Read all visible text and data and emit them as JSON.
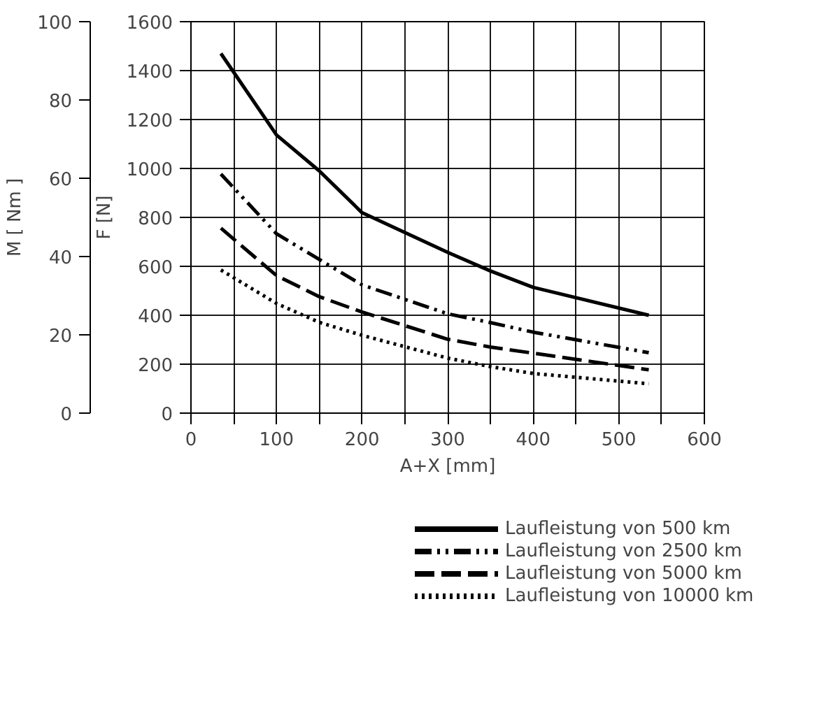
{
  "chart_data": {
    "type": "line",
    "xlabel": "A+X [mm]",
    "ylabel": "F [N]",
    "y2label": "M [ Nm ]",
    "xlim": [
      0,
      600
    ],
    "ylim": [
      0,
      1600
    ],
    "y2lim": [
      0,
      100
    ],
    "xticks": [
      0,
      {
        "value": 50,
        "label": null
      },
      100,
      {
        "value": 150,
        "label": null
      },
      200,
      {
        "value": 250,
        "label": null
      },
      300,
      {
        "value": 350,
        "label": null
      },
      400,
      {
        "value": 450,
        "label": null
      },
      500,
      {
        "value": 550,
        "label": null
      },
      600
    ],
    "yticks": [
      0,
      200,
      400,
      600,
      800,
      1000,
      1200,
      1400,
      1600
    ],
    "y2ticks": [
      0,
      20,
      40,
      60,
      80,
      100
    ],
    "grid": true,
    "legend": "bottom",
    "marker": "none",
    "x": [
      35,
      100,
      150,
      200,
      300,
      350,
      400,
      535
    ],
    "series": [
      {
        "name": "Laufleistung von 500 km",
        "color": "#000000",
        "line_style": "solid",
        "values": [
          1470,
          1137,
          990,
          819,
          657,
          581,
          514,
          400
        ]
      },
      {
        "name": "Laufleistung von 2500 km",
        "color": "#000000",
        "line_style": "dashdotdot",
        "values": [
          977,
          733,
          628,
          524,
          406,
          370,
          331,
          247
        ]
      },
      {
        "name": "Laufleistung von 5000 km",
        "color": "#000000",
        "line_style": "dashed",
        "values": [
          756,
          562,
          476,
          413,
          302,
          270,
          245,
          177
        ]
      },
      {
        "name": "Laufleistung von 10000 km",
        "color": "#000000",
        "line_style": "dotted",
        "values": [
          585,
          448,
          371,
          318,
          225,
          190,
          162,
          120
        ]
      }
    ]
  }
}
